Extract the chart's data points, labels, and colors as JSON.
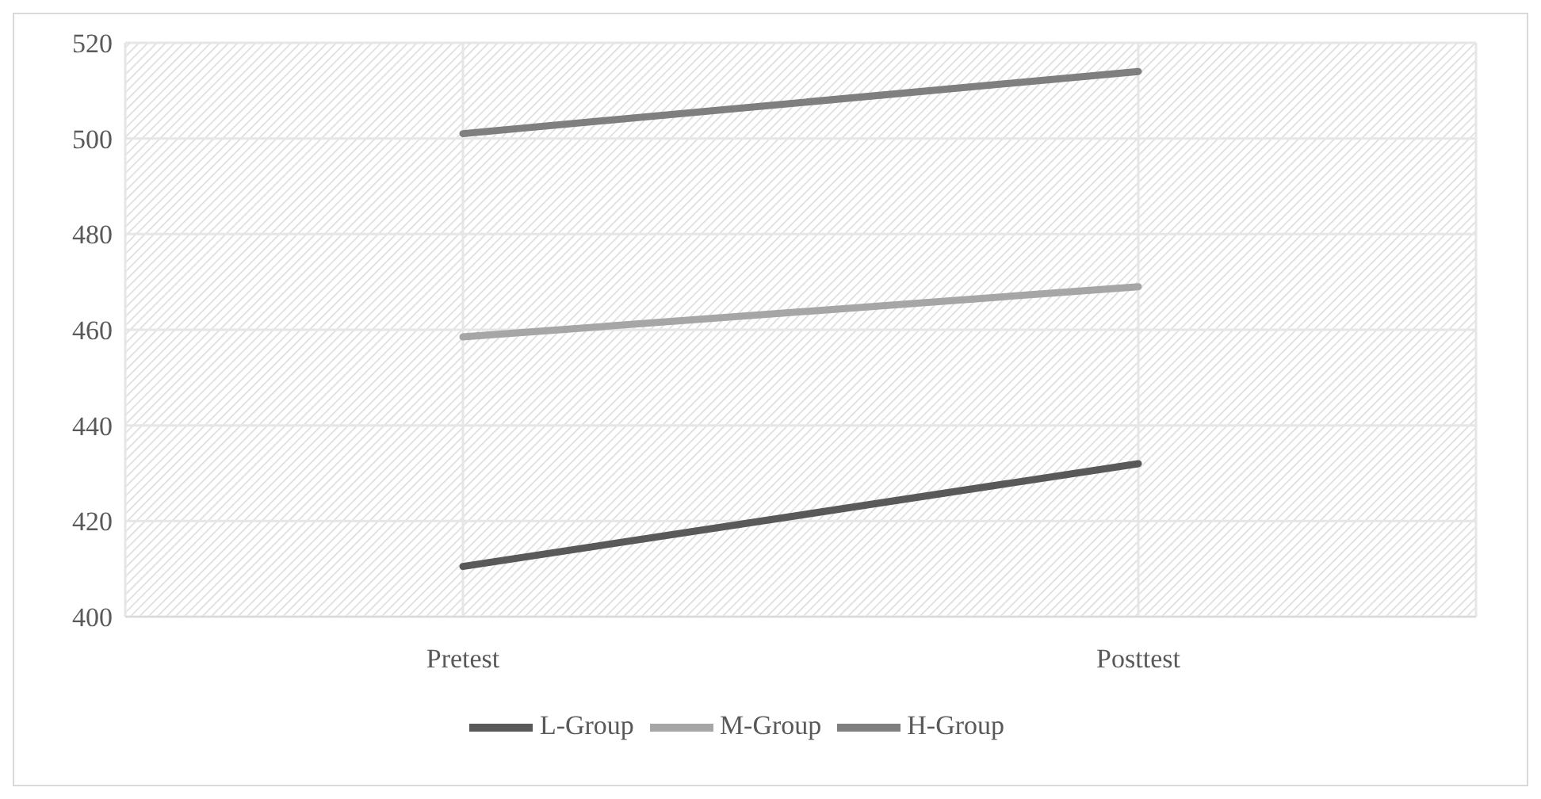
{
  "chart_data": {
    "type": "line",
    "categories": [
      "Pretest",
      "Posttest"
    ],
    "series": [
      {
        "name": "L-Group",
        "color": "#595959",
        "values": [
          410.5,
          432
        ]
      },
      {
        "name": "M-Group",
        "color": "#a6a6a6",
        "values": [
          458.5,
          469
        ]
      },
      {
        "name": "H-Group",
        "color": "#7f7f7f",
        "values": [
          501,
          514
        ]
      }
    ],
    "ylim": [
      400,
      520
    ],
    "yticks": [
      400,
      420,
      440,
      460,
      480,
      500,
      520
    ],
    "grid": true,
    "legend": "bottom",
    "marker": "none",
    "line_style": "solid"
  }
}
